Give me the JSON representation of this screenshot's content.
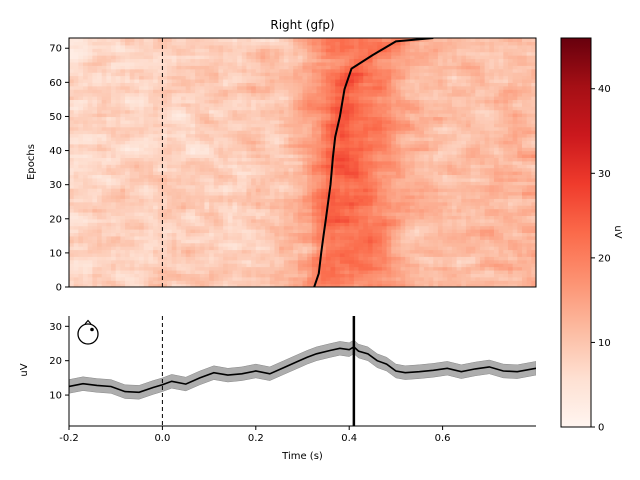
{
  "chart_data": [
    {
      "type": "heatmap",
      "title": "Right (gfp)",
      "ylabel": "Epochs",
      "xlim": [
        -0.2,
        0.8
      ],
      "ylim": [
        0,
        73
      ],
      "yticks": [
        0,
        10,
        20,
        30,
        40,
        50,
        60,
        70
      ],
      "event_time": 0.0,
      "sorted_trace": {
        "x": [
          0.325,
          0.335,
          0.34,
          0.345,
          0.35,
          0.355,
          0.36,
          0.365,
          0.37,
          0.38,
          0.39,
          0.405,
          0.45,
          0.5,
          0.58
        ],
        "y": [
          0,
          4,
          10,
          15,
          20,
          25,
          30,
          38,
          44,
          50,
          58,
          64,
          68,
          72,
          73
        ]
      },
      "colorbar": {
        "label": "uV",
        "range": [
          0,
          46
        ],
        "ticks": [
          0,
          10,
          20,
          30,
          40
        ],
        "colormap": "Reds"
      }
    },
    {
      "type": "line",
      "ylabel": "uV",
      "xlabel": "Time (s)",
      "xlim": [
        -0.2,
        0.8
      ],
      "ylim": [
        1,
        33
      ],
      "xticks": [
        -0.2,
        0.0,
        0.2,
        0.4,
        0.6
      ],
      "xtick_labels": [
        "-0.2",
        "0.0",
        "0.2",
        "0.4",
        "0.6"
      ],
      "yticks": [
        10,
        20,
        30
      ],
      "event_time": 0.0,
      "peak_time": 0.41,
      "series": [
        {
          "x": [
            -0.2,
            -0.17,
            -0.14,
            -0.11,
            -0.08,
            -0.05,
            -0.02,
            0.0,
            0.02,
            0.05,
            0.08,
            0.11,
            0.14,
            0.17,
            0.2,
            0.23,
            0.26,
            0.29,
            0.31,
            0.33,
            0.36,
            0.38,
            0.4,
            0.41,
            0.42,
            0.44,
            0.46,
            0.48,
            0.5,
            0.52,
            0.55,
            0.58,
            0.61,
            0.64,
            0.67,
            0.7,
            0.73,
            0.76,
            0.8
          ],
          "y": [
            12.5,
            13.3,
            12.8,
            12.5,
            11.0,
            10.8,
            12.2,
            13.0,
            14.0,
            13.2,
            15.0,
            16.5,
            15.8,
            16.2,
            17.0,
            16.2,
            18.0,
            19.8,
            21.0,
            22.0,
            23.0,
            23.6,
            23.2,
            24.0,
            22.8,
            22.0,
            20.0,
            19.0,
            17.0,
            16.5,
            16.8,
            17.2,
            17.8,
            16.8,
            17.6,
            18.2,
            17.0,
            16.8,
            17.8
          ],
          "band": 2.0
        }
      ]
    }
  ]
}
